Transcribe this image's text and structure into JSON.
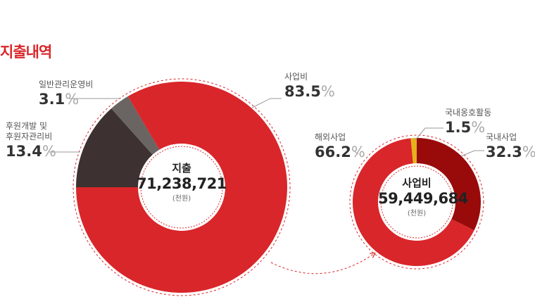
{
  "title": "지출내역",
  "chart_data": [
    {
      "type": "pie",
      "center_title": "지출",
      "center_value": "71,238,721",
      "center_unit": "(천원)",
      "unit": "%",
      "categories": [
        "후원개발 및\n후원자관리비",
        "일반관리운영비",
        "사업비"
      ],
      "values": [
        13.4,
        3.1,
        83.5
      ],
      "colors": [
        "#3d3131",
        "#6a6462",
        "#d9262a"
      ]
    },
    {
      "type": "pie",
      "center_title": "사업비",
      "center_value": "59,449,684",
      "center_unit": "(천원)",
      "unit": "%",
      "categories": [
        "국내사업",
        "해외사업",
        "국내옹호활동"
      ],
      "values": [
        32.3,
        66.2,
        1.5
      ],
      "colors": [
        "#990b0b",
        "#d9262a",
        "#e5b21a"
      ]
    }
  ]
}
